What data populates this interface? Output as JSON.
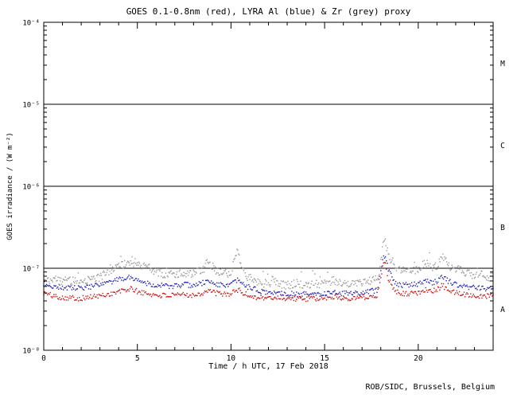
{
  "title": "GOES 0.1-0.8nm (red), LYRA Al (blue) & Zr (grey) proxy",
  "credit": "ROB/SIDC, Brussels, Belgium",
  "axes": {
    "x": {
      "label": "Time / h UTC, 17 Feb 2018",
      "min": 0,
      "max": 24,
      "major_ticks": [
        0,
        5,
        10,
        15,
        20
      ],
      "minor_step": 1
    },
    "y": {
      "label": "GOES irradiance / (W m⁻²)",
      "min_exp": -8,
      "max_exp": -4,
      "tick_exps": [
        -8,
        -7,
        -6,
        -5,
        -4
      ],
      "tick_labels": [
        "10⁻⁸",
        "10⁻⁷",
        "10⁻⁶",
        "10⁻⁵",
        "10⁻⁴"
      ]
    }
  },
  "class_bands": [
    {
      "label": "M",
      "center_exp": -4.5
    },
    {
      "label": "C",
      "center_exp": -5.5
    },
    {
      "label": "B",
      "center_exp": -6.5
    },
    {
      "label": "A",
      "center_exp": -7.5
    }
  ],
  "reference_lines_exp": [
    -5,
    -6,
    -7
  ],
  "colors": {
    "red": "#cc1111",
    "blue": "#2222bb",
    "grey": "#999999",
    "axis": "#000000",
    "background": "#ffffff"
  },
  "chart_data": {
    "type": "scatter",
    "title": "GOES 0.1-0.8nm (red), LYRA Al (blue) & Zr (grey) proxy",
    "xlabel": "Time / h UTC, 17 Feb 2018",
    "ylabel": "GOES irradiance / (W m⁻²)",
    "xlim": [
      0,
      24
    ],
    "ylim": [
      1e-08,
      0.0001
    ],
    "ylog": true,
    "grid": false,
    "legend": "none (colors named in title)",
    "series": [
      {
        "name": "GOES 0.1-0.8nm",
        "color_key": "red",
        "jitter_decades": 0.032,
        "points": [
          [
            0,
            5e-08
          ],
          [
            0.5,
            4.6e-08
          ],
          [
            1,
            4.4e-08
          ],
          [
            2,
            4.3e-08
          ],
          [
            3,
            4.6e-08
          ],
          [
            3.8,
            5e-08
          ],
          [
            4.3,
            5.4e-08
          ],
          [
            4.7,
            5.6e-08
          ],
          [
            5,
            5.2e-08
          ],
          [
            5.5,
            4.9e-08
          ],
          [
            6,
            4.7e-08
          ],
          [
            7,
            4.6e-08
          ],
          [
            7.5,
            4.8e-08
          ],
          [
            8,
            4.7e-08
          ],
          [
            8.5,
            5e-08
          ],
          [
            8.8,
            5.4e-08
          ],
          [
            9,
            5.1e-08
          ],
          [
            9.5,
            4.8e-08
          ],
          [
            10,
            4.9e-08
          ],
          [
            10.4,
            5.5e-08
          ],
          [
            10.6,
            5e-08
          ],
          [
            11,
            4.6e-08
          ],
          [
            11.5,
            4.4e-08
          ],
          [
            12,
            4.3e-08
          ],
          [
            12.5,
            4.4e-08
          ],
          [
            13,
            4.3e-08
          ],
          [
            14,
            4.2e-08
          ],
          [
            15,
            4.3e-08
          ],
          [
            15.5,
            4.5e-08
          ],
          [
            16,
            4.3e-08
          ],
          [
            17,
            4.4e-08
          ],
          [
            17.8,
            4.6e-08
          ],
          [
            18.1,
            1.05e-07
          ],
          [
            18.25,
            1.15e-07
          ],
          [
            18.4,
            7.5e-08
          ],
          [
            18.7,
            5.5e-08
          ],
          [
            19,
            5e-08
          ],
          [
            19.5,
            4.9e-08
          ],
          [
            20,
            5e-08
          ],
          [
            20.4,
            5.6e-08
          ],
          [
            20.7,
            5.2e-08
          ],
          [
            21,
            5.4e-08
          ],
          [
            21.3,
            6.2e-08
          ],
          [
            21.6,
            5.4e-08
          ],
          [
            22,
            5e-08
          ],
          [
            22.5,
            4.8e-08
          ],
          [
            23,
            4.7e-08
          ],
          [
            23.5,
            4.6e-08
          ],
          [
            24,
            4.6e-08
          ]
        ]
      },
      {
        "name": "LYRA Al proxy",
        "color_key": "blue",
        "jitter_decades": 0.032,
        "points": [
          [
            0,
            6.5e-08
          ],
          [
            0.5,
            6e-08
          ],
          [
            1,
            5.8e-08
          ],
          [
            2,
            5.7e-08
          ],
          [
            3,
            6.2e-08
          ],
          [
            3.8,
            7e-08
          ],
          [
            4.3,
            7.6e-08
          ],
          [
            4.7,
            7.8e-08
          ],
          [
            5,
            7.2e-08
          ],
          [
            5.5,
            6.6e-08
          ],
          [
            6,
            6.2e-08
          ],
          [
            7,
            6e-08
          ],
          [
            7.5,
            6.3e-08
          ],
          [
            8,
            6.2e-08
          ],
          [
            8.5,
            6.6e-08
          ],
          [
            8.8,
            7e-08
          ],
          [
            9,
            6.6e-08
          ],
          [
            9.5,
            6.2e-08
          ],
          [
            10,
            6.3e-08
          ],
          [
            10.4,
            7.2e-08
          ],
          [
            10.6,
            6.4e-08
          ],
          [
            11,
            5.8e-08
          ],
          [
            11.5,
            5.3e-08
          ],
          [
            12,
            5e-08
          ],
          [
            12.5,
            5.1e-08
          ],
          [
            13,
            4.9e-08
          ],
          [
            14,
            4.8e-08
          ],
          [
            15,
            4.9e-08
          ],
          [
            15.5,
            5.2e-08
          ],
          [
            16,
            4.9e-08
          ],
          [
            17,
            5e-08
          ],
          [
            17.8,
            5.4e-08
          ],
          [
            18.1,
            1.3e-07
          ],
          [
            18.25,
            1.45e-07
          ],
          [
            18.4,
            9.5e-08
          ],
          [
            18.7,
            7e-08
          ],
          [
            19,
            6.3e-08
          ],
          [
            19.5,
            6.2e-08
          ],
          [
            20,
            6.4e-08
          ],
          [
            20.4,
            7.2e-08
          ],
          [
            20.7,
            6.6e-08
          ],
          [
            21,
            7e-08
          ],
          [
            21.3,
            8e-08
          ],
          [
            21.6,
            7e-08
          ],
          [
            22,
            6.3e-08
          ],
          [
            22.5,
            6e-08
          ],
          [
            23,
            5.8e-08
          ],
          [
            23.5,
            5.7e-08
          ],
          [
            24,
            5.7e-08
          ]
        ]
      },
      {
        "name": "LYRA Zr proxy",
        "color_key": "grey",
        "jitter_decades": 0.05,
        "points": [
          [
            0,
            7.5e-08
          ],
          [
            0.5,
            7.2e-08
          ],
          [
            1,
            7e-08
          ],
          [
            2,
            7e-08
          ],
          [
            3,
            7.8e-08
          ],
          [
            3.5,
            9e-08
          ],
          [
            4,
            1.05e-07
          ],
          [
            4.4,
            1.15e-07
          ],
          [
            4.7,
            1.25e-07
          ],
          [
            4.9,
            1.1e-07
          ],
          [
            5.2,
            1.05e-07
          ],
          [
            5.5,
            1.15e-07
          ],
          [
            5.8,
            9.5e-08
          ],
          [
            6,
            9e-08
          ],
          [
            6.5,
            8.5e-08
          ],
          [
            7,
            8.2e-08
          ],
          [
            7.5,
            8.8e-08
          ],
          [
            8,
            8.6e-08
          ],
          [
            8.5,
            9.5e-08
          ],
          [
            8.8,
            1.25e-07
          ],
          [
            9,
            1.05e-07
          ],
          [
            9.3,
            9e-08
          ],
          [
            9.6,
            8.6e-08
          ],
          [
            10,
            8.8e-08
          ],
          [
            10.35,
            1.75e-07
          ],
          [
            10.5,
            1.1e-07
          ],
          [
            10.8,
            8.2e-08
          ],
          [
            11,
            7.6e-08
          ],
          [
            11.5,
            6.8e-08
          ],
          [
            12,
            6.4e-08
          ],
          [
            12.3,
            7.2e-08
          ],
          [
            12.6,
            6.4e-08
          ],
          [
            13,
            6.2e-08
          ],
          [
            13.5,
            6.6e-08
          ],
          [
            14,
            6.2e-08
          ],
          [
            14.5,
            6.4e-08
          ],
          [
            15,
            6.4e-08
          ],
          [
            15.5,
            7.2e-08
          ],
          [
            16,
            6.4e-08
          ],
          [
            16.5,
            6.8e-08
          ],
          [
            17,
            6.6e-08
          ],
          [
            17.5,
            7e-08
          ],
          [
            17.9,
            7.6e-08
          ],
          [
            18.1,
            1.9e-07
          ],
          [
            18.25,
            2.2e-07
          ],
          [
            18.4,
            1.4e-07
          ],
          [
            18.7,
            1.05e-07
          ],
          [
            19,
            9.5e-08
          ],
          [
            19.3,
            1e-07
          ],
          [
            19.6,
            9.2e-08
          ],
          [
            20,
            9.5e-08
          ],
          [
            20.4,
            1.2e-07
          ],
          [
            20.7,
            1e-07
          ],
          [
            21,
            1.05e-07
          ],
          [
            21.3,
            1.45e-07
          ],
          [
            21.6,
            1.1e-07
          ],
          [
            21.9,
            9.5e-08
          ],
          [
            22.2,
            1.05e-07
          ],
          [
            22.5,
            8.8e-08
          ],
          [
            23,
            8.2e-08
          ],
          [
            23.3,
            8.8e-08
          ],
          [
            23.6,
            7.8e-08
          ],
          [
            24,
            7.8e-08
          ]
        ]
      }
    ]
  }
}
